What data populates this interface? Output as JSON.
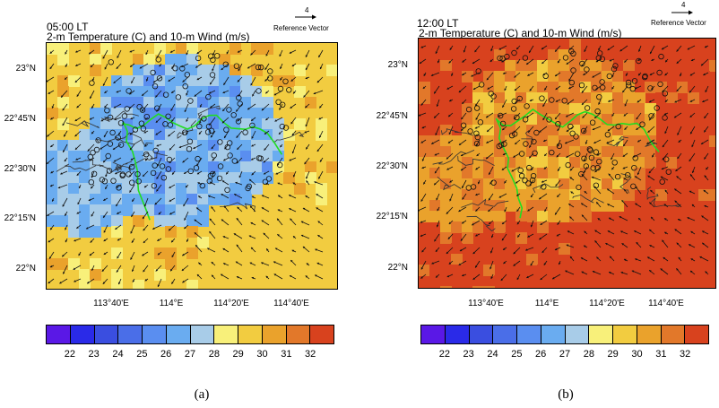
{
  "figure": {
    "panels": [
      {
        "time_label": "05:00 LT",
        "title": "2-m Temperature (C) and 10-m Wind (m/s)",
        "reference_vector_value": "4",
        "reference_vector_label": "Reference Vector",
        "caption": "(a)",
        "dominant_temperature_c": 29,
        "cool_region_temperature_c": 26
      },
      {
        "time_label": "12:00 LT",
        "title": "2-m Temperature (C) and 10-m Wind (m/s)",
        "reference_vector_value": "4",
        "reference_vector_label": "Reference Vector",
        "caption": "(b)",
        "dominant_temperature_c": 32,
        "cool_region_temperature_c": 30
      }
    ],
    "latitude_labels": [
      "23°N",
      "22°45'N",
      "22°30'N",
      "22°15'N",
      "22°N"
    ],
    "longitude_labels": [
      "113°40'E",
      "114°E",
      "114°20'E",
      "114°40'E"
    ],
    "colorbar": {
      "labels": [
        "22",
        "23",
        "24",
        "25",
        "26",
        "27",
        "28",
        "29",
        "30",
        "31",
        "32"
      ],
      "colors": [
        "#5a18e6",
        "#2a2ae8",
        "#3a4ee0",
        "#4a6ee8",
        "#5a8ef0",
        "#6aacf0",
        "#a8cce8",
        "#f8f07a",
        "#f2cc40",
        "#eaa22c",
        "#e2782a",
        "#d8421e"
      ]
    },
    "colors": {
      "boundary_line": "#22dd22",
      "wind_arrow": "#111111",
      "station_marker": "#111111"
    }
  }
}
